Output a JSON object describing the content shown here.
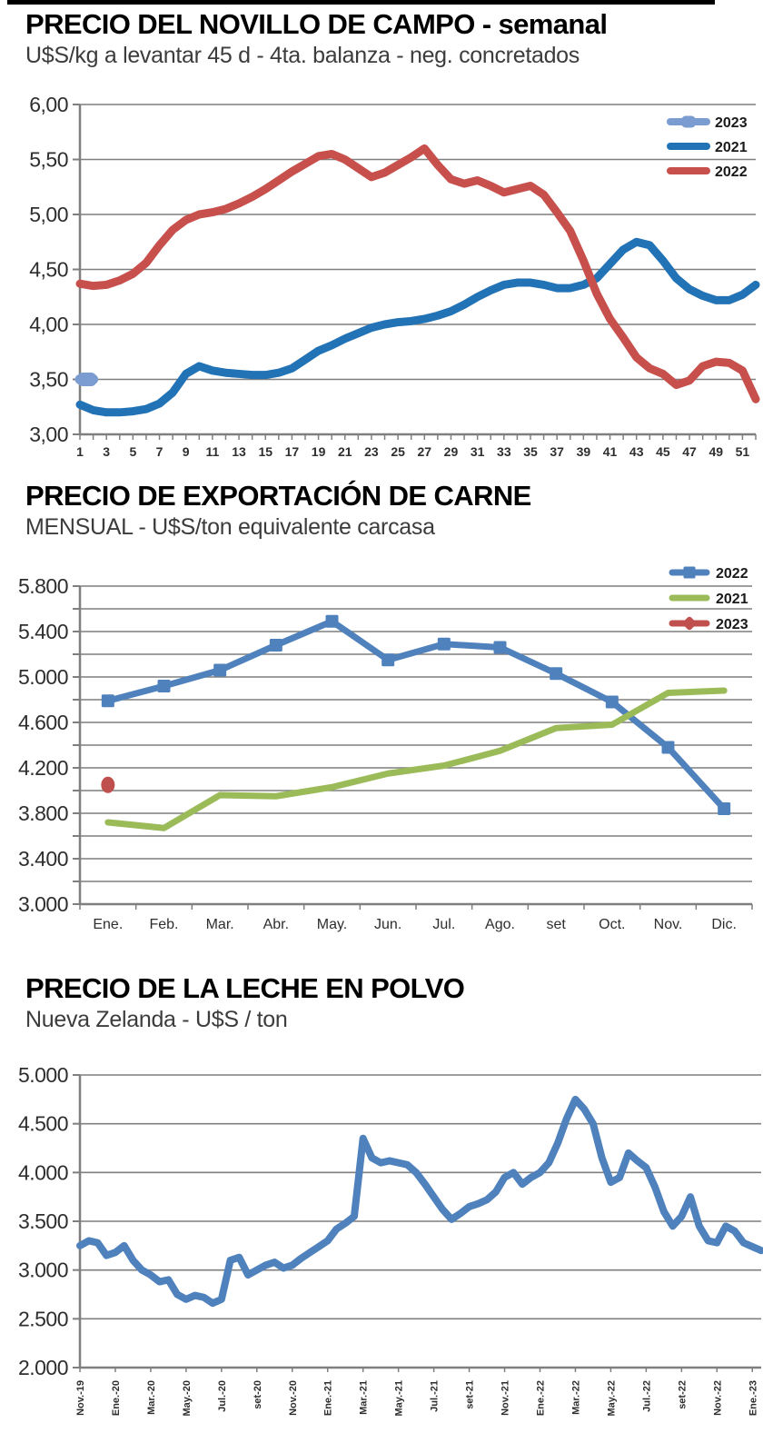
{
  "page": {
    "background": "#ffffff",
    "top_bar_color": "#000000",
    "gridline_color": "#7f7f7f"
  },
  "chart_data": [
    {
      "id": "novillo",
      "type": "line",
      "title": "PRECIO DEL NOVILLO DE CAMPO - semanal",
      "subtitle": "U$S/kg a levantar 45 d - 4ta. balanza - neg. concretados",
      "xlabel": "semana",
      "ylabel": "U$S/kg",
      "ylim": [
        3.0,
        6.0
      ],
      "grid": true,
      "legend_position": "top-right",
      "yticks": [
        {
          "v": 6.0,
          "label": "6,00"
        },
        {
          "v": 5.5,
          "label": "5,50"
        },
        {
          "v": 5.0,
          "label": "5,00"
        },
        {
          "v": 4.5,
          "label": "4,50"
        },
        {
          "v": 4.0,
          "label": "4,00"
        },
        {
          "v": 3.5,
          "label": "3,50"
        },
        {
          "v": 3.0,
          "label": "3,00"
        }
      ],
      "weeks": 52,
      "xtick_labels": [
        "1",
        "3",
        "5",
        "7",
        "9",
        "11",
        "13",
        "15",
        "17",
        "19",
        "21",
        "23",
        "25",
        "27",
        "29",
        "31",
        "33",
        "35",
        "37",
        "39",
        "41",
        "43",
        "45",
        "47",
        "49",
        "51"
      ],
      "legend": [
        "2023",
        "2021",
        "2022"
      ],
      "series": [
        {
          "name": "2023",
          "color": "#7b9cd1",
          "style": "stub",
          "x": [
            1,
            2
          ],
          "values": [
            3.5,
            3.5
          ]
        },
        {
          "name": "2021",
          "color": "#2272b6",
          "style": "line",
          "values": [
            3.27,
            3.22,
            3.2,
            3.2,
            3.21,
            3.23,
            3.28,
            3.38,
            3.55,
            3.62,
            3.58,
            3.56,
            3.55,
            3.54,
            3.54,
            3.56,
            3.6,
            3.68,
            3.76,
            3.81,
            3.87,
            3.92,
            3.97,
            4.0,
            4.02,
            4.03,
            4.05,
            4.08,
            4.12,
            4.18,
            4.25,
            4.31,
            4.36,
            4.38,
            4.38,
            4.36,
            4.33,
            4.33,
            4.36,
            4.42,
            4.55,
            4.68,
            4.75,
            4.72,
            4.58,
            4.42,
            4.32,
            4.26,
            4.22,
            4.22,
            4.27,
            4.36
          ]
        },
        {
          "name": "2022",
          "color": "#c7504c",
          "style": "line",
          "values": [
            4.37,
            4.35,
            4.36,
            4.4,
            4.46,
            4.56,
            4.72,
            4.86,
            4.95,
            5.0,
            5.02,
            5.05,
            5.1,
            5.16,
            5.23,
            5.31,
            5.39,
            5.46,
            5.53,
            5.55,
            5.5,
            5.42,
            5.34,
            5.38,
            5.45,
            5.52,
            5.6,
            5.45,
            5.32,
            5.28,
            5.31,
            5.26,
            5.2,
            5.23,
            5.26,
            5.18,
            5.02,
            4.85,
            4.58,
            4.28,
            4.05,
            3.88,
            3.7,
            3.6,
            3.55,
            3.45,
            3.49,
            3.62,
            3.66,
            3.65,
            3.58,
            3.32
          ]
        }
      ]
    },
    {
      "id": "carne",
      "type": "line",
      "title": "PRECIO DE EXPORTACIÓN DE CARNE",
      "subtitle": "MENSUAL - U$S/ton equivalente carcasa",
      "xlabel": "mes",
      "ylabel": "U$S/ton",
      "ylim": [
        3000,
        5800
      ],
      "grid_step": 200,
      "grid": true,
      "legend_position": "top-right",
      "yticks": [
        {
          "v": 5800,
          "label": "5.800"
        },
        {
          "v": 5400,
          "label": "5.400"
        },
        {
          "v": 5000,
          "label": "5.000"
        },
        {
          "v": 4600,
          "label": "4.600"
        },
        {
          "v": 4200,
          "label": "4.200"
        },
        {
          "v": 3800,
          "label": "3.800"
        },
        {
          "v": 3400,
          "label": "3.400"
        },
        {
          "v": 3000,
          "label": "3.000"
        }
      ],
      "categories": [
        "Ene.",
        "Feb.",
        "Mar.",
        "Abr.",
        "May.",
        "Jun.",
        "Jul.",
        "Ago.",
        "set",
        "Oct.",
        "Nov.",
        "Dic."
      ],
      "legend": [
        "2022",
        "2021",
        "2023"
      ],
      "series": [
        {
          "name": "2022",
          "color": "#4f81bd",
          "style": "line",
          "marker": "square",
          "values": [
            4790,
            4920,
            5060,
            5280,
            5490,
            5150,
            5290,
            5260,
            5030,
            4780,
            4380,
            3840
          ]
        },
        {
          "name": "2021",
          "color": "#9bbb59",
          "style": "line",
          "marker": "none",
          "values": [
            3720,
            3670,
            3960,
            3950,
            4030,
            4150,
            4220,
            4350,
            4550,
            4580,
            4860,
            4880
          ]
        },
        {
          "name": "2023",
          "color": "#c0504d",
          "style": "points",
          "marker": "dot",
          "values": [
            4050,
            null,
            null,
            null,
            null,
            null,
            null,
            null,
            null,
            null,
            null,
            null
          ]
        }
      ]
    },
    {
      "id": "leche",
      "type": "line",
      "title": "PRECIO DE LA LECHE EN POLVO",
      "subtitle": "Nueva Zelanda - U$S / ton",
      "xlabel": "fecha",
      "ylabel": "U$S/ton",
      "ylim": [
        2000,
        5000
      ],
      "grid_step": 500,
      "grid": true,
      "yticks": [
        {
          "v": 5000,
          "label": "5.000"
        },
        {
          "v": 4500,
          "label": "4.500"
        },
        {
          "v": 4000,
          "label": "4.000"
        },
        {
          "v": 3500,
          "label": "3.500"
        },
        {
          "v": 3000,
          "label": "3.000"
        },
        {
          "v": 2500,
          "label": "2.500"
        },
        {
          "v": 2000,
          "label": "2.000"
        }
      ],
      "xtick_labels": [
        "Nov.-19",
        "Ene.-20",
        "Mar.-20",
        "May.-20",
        "Jul.-20",
        "set-20",
        "Nov.-20",
        "Ene.-21",
        "Mar.-21",
        "May.-21",
        "Jul.-21",
        "set-21",
        "Nov.-21",
        "Ene.-22",
        "Mar.-22",
        "May.-22",
        "Jul.-22",
        "set-22",
        "Nov.-22",
        "Ene.-23"
      ],
      "xtick_every": 4,
      "series": [
        {
          "name": "U$S/ton",
          "color": "#4f81bd",
          "style": "line",
          "values": [
            3250,
            3300,
            3280,
            3150,
            3180,
            3250,
            3100,
            3000,
            2950,
            2880,
            2900,
            2750,
            2700,
            2740,
            2720,
            2660,
            2700,
            3100,
            3130,
            2950,
            3000,
            3050,
            3080,
            3020,
            3050,
            3120,
            3180,
            3240,
            3300,
            3420,
            3480,
            3550,
            4350,
            4150,
            4100,
            4120,
            4100,
            4080,
            4000,
            3880,
            3750,
            3620,
            3520,
            3580,
            3650,
            3680,
            3720,
            3800,
            3950,
            4000,
            3880,
            3950,
            4000,
            4100,
            4300,
            4550,
            4750,
            4650,
            4500,
            4150,
            3900,
            3950,
            4200,
            4120,
            4050,
            3850,
            3600,
            3450,
            3550,
            3750,
            3450,
            3300,
            3280,
            3450,
            3400,
            3280,
            3240,
            3200
          ]
        }
      ]
    }
  ]
}
